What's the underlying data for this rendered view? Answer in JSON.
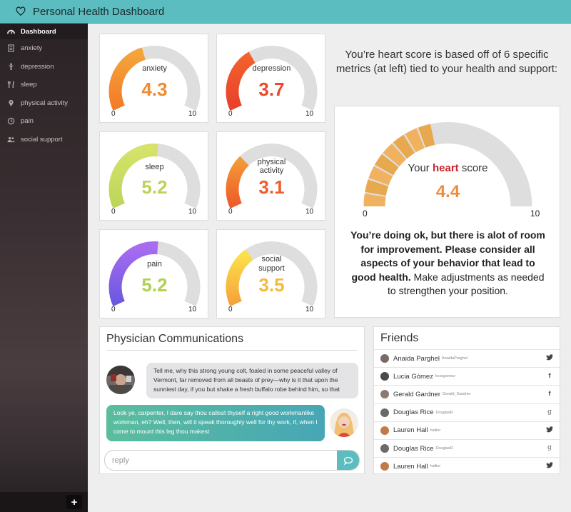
{
  "app": {
    "title": "Personal Health Dashboard"
  },
  "sidebar": {
    "items": [
      {
        "label": "Dashboard",
        "icon": "dashboard-icon",
        "active": true
      },
      {
        "label": "anxiety",
        "icon": "document-icon"
      },
      {
        "label": "depression",
        "icon": "person-icon"
      },
      {
        "label": "sleep",
        "icon": "utensils-icon"
      },
      {
        "label": "physical activity",
        "icon": "map-pin-icon"
      },
      {
        "label": "pain",
        "icon": "clock-icon"
      },
      {
        "label": "social support",
        "icon": "users-icon"
      }
    ],
    "add_label": "+"
  },
  "gauges": [
    {
      "key": "anxiety",
      "label": "anxiety",
      "value": "4.3",
      "num": 4.3,
      "min": "0",
      "max": "10",
      "color": "#f4a43a",
      "color2": "#f47b28",
      "value_color": "#f28a2e"
    },
    {
      "key": "depression",
      "label": "depression",
      "value": "3.7",
      "num": 3.7,
      "min": "0",
      "max": "10",
      "color": "#f2612e",
      "color2": "#e8402a",
      "value_color": "#ea4a2a"
    },
    {
      "key": "sleep",
      "label": "sleep",
      "value": "5.2",
      "num": 5.2,
      "min": "0",
      "max": "10",
      "color": "#d6e26a",
      "color2": "#bcd65a",
      "value_color": "#bcd25a"
    },
    {
      "key": "physical-activity",
      "label_line1": "physical",
      "label_line2": "activity",
      "value": "3.1",
      "num": 3.1,
      "min": "0",
      "max": "10",
      "color": "#f29a36",
      "color2": "#ee5a2a",
      "value_color": "#ee5d2a"
    },
    {
      "key": "pain",
      "label": "pain",
      "value": "5.2",
      "num": 5.2,
      "min": "0",
      "max": "10",
      "color": "#a76cf0",
      "color2": "#6a58e0",
      "value_color": "#b1d052"
    },
    {
      "key": "social-support",
      "label_line1": "social",
      "label_line2": "support",
      "value": "3.5",
      "num": 3.5,
      "min": "0",
      "max": "10",
      "color": "#fce04a",
      "color2": "#f6a23a",
      "value_color": "#f4ba38"
    }
  ],
  "heart": {
    "intro": "You’re heart score is based off of 6 specific metrics (at left) tied to your health and support:",
    "label_pre": "Your",
    "label_highlight": "heart",
    "label_post": "score",
    "value": "4.4",
    "num": 4.4,
    "min": "0",
    "max": "10",
    "message_bold": "You’re doing ok, but there is alot of room for improvement. Please consider all aspects of your behavior that lead to good health.",
    "message_rest": " Make adjustments as needed to strengthen your position.",
    "color_light": "#f0b25e",
    "color_dark": "#e8a84e"
  },
  "physician": {
    "title": "Physician Communications",
    "messages": [
      {
        "direction": "incoming",
        "text": "Tell me, why this strong young colt, foaled in some peaceful valley of Vermont, far removed from all beasts of prey—why is it that upon the sunniest day, if you but shake a fresh buffalo robe behind him, so that"
      },
      {
        "direction": "outgoing",
        "text": "Look ye, carpenter, I dare say thou callest thyself a right good workmanlike workman, eh? Well, then, will it speak thoroughly well for thy work, if, when I come to mount this leg thou makest"
      }
    ],
    "reply_placeholder": "reply"
  },
  "friends": {
    "title": "Friends",
    "list": [
      {
        "name": "Anaida Parghel",
        "handle": "AnaidaParghel",
        "network": "twitter",
        "glyph": "🐦"
      },
      {
        "name": "Lucia Gómez",
        "handle": "luciagomez",
        "network": "facebook",
        "glyph": "f"
      },
      {
        "name": "Gerald Gardner",
        "handle": "Gerald_Gardner",
        "network": "facebook",
        "glyph": "f"
      },
      {
        "name": "Douglas Rice",
        "handle": "DouglasR",
        "network": "google-plus",
        "glyph": "g"
      },
      {
        "name": "Lauren Hall",
        "handle": "hallier",
        "network": "twitter",
        "glyph": "🐦"
      },
      {
        "name": "Douglas Rice",
        "handle": "DouglasR",
        "network": "google-plus",
        "glyph": "g"
      },
      {
        "name": "Lauren Hall",
        "handle": "hallier",
        "network": "twitter",
        "glyph": "🐦"
      }
    ]
  }
}
